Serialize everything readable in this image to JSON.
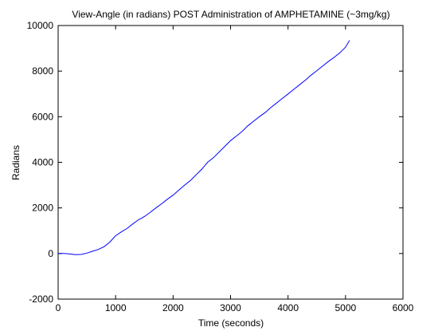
{
  "chart_data": {
    "type": "line",
    "title": "View-Angle (in radians) POST Administration of AMPHETAMINE (~3mg/kg)",
    "xlabel": "Time (seconds)",
    "ylabel": "Radians",
    "xlim": [
      0,
      6000
    ],
    "ylim": [
      -2000,
      10000
    ],
    "xticks": [
      0,
      1000,
      2000,
      3000,
      4000,
      5000,
      6000
    ],
    "yticks": [
      -2000,
      0,
      2000,
      4000,
      6000,
      8000,
      10000
    ],
    "grid": false,
    "series": [
      {
        "color": "#0000ff",
        "x": [
          0,
          100,
          200,
          300,
          400,
          500,
          600,
          700,
          800,
          900,
          1000,
          1100,
          1200,
          1300,
          1400,
          1500,
          1600,
          1700,
          1800,
          1900,
          2000,
          2100,
          2200,
          2300,
          2400,
          2500,
          2600,
          2700,
          2800,
          2900,
          3000,
          3100,
          3200,
          3300,
          3400,
          3500,
          3600,
          3700,
          3800,
          3900,
          4000,
          4100,
          4200,
          4300,
          4400,
          4500,
          4600,
          4700,
          4800,
          4900,
          5000,
          5070
        ],
        "y": [
          0,
          0,
          -20,
          -50,
          -40,
          20,
          100,
          180,
          300,
          500,
          780,
          950,
          1100,
          1300,
          1480,
          1620,
          1800,
          2000,
          2180,
          2380,
          2560,
          2780,
          3000,
          3200,
          3450,
          3700,
          4000,
          4200,
          4450,
          4700,
          4950,
          5150,
          5350,
          5600,
          5800,
          6000,
          6180,
          6400,
          6600,
          6800,
          7000,
          7200,
          7400,
          7600,
          7820,
          8020,
          8220,
          8420,
          8600,
          8800,
          9050,
          9350
        ]
      }
    ]
  }
}
